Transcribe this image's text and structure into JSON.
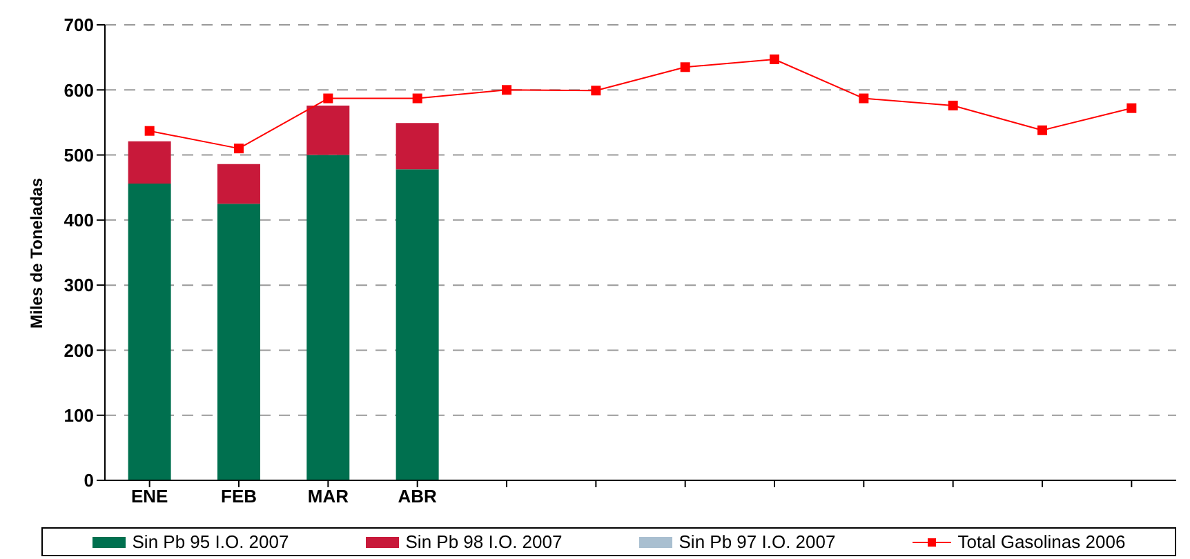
{
  "chart_data": {
    "type": "bar",
    "ylabel": "Miles de Toneladas",
    "categories": [
      "ENE",
      "FEB",
      "MAR",
      "ABR",
      null,
      null,
      null,
      null,
      null,
      null,
      null,
      null
    ],
    "stacked": true,
    "ylim": [
      0,
      700
    ],
    "yticks": [
      0,
      100,
      200,
      300,
      400,
      500,
      600,
      700
    ],
    "grid": "y",
    "legend": "bottom",
    "series": [
      {
        "name": "Sin Pb 95 I.O. 2007",
        "color": "#00704f",
        "values": [
          456,
          425,
          500,
          478,
          null,
          null,
          null,
          null,
          null,
          null,
          null,
          null
        ]
      },
      {
        "name": "Sin Pb 98 I.O. 2007",
        "color": "#c8193a",
        "values": [
          65,
          61,
          76,
          71,
          null,
          null,
          null,
          null,
          null,
          null,
          null,
          null
        ]
      },
      {
        "name": "Sin Pb 97 I.O. 2007",
        "color": "#a9bfd0",
        "values": [
          null,
          null,
          null,
          null,
          null,
          null,
          null,
          null,
          null,
          null,
          null,
          null
        ]
      },
      {
        "name": "Total Gasolinas 2006",
        "type": "line",
        "color": "#ff0000",
        "marker": "square",
        "values": [
          537,
          510,
          587,
          587,
          600,
          599,
          635,
          647,
          587,
          576,
          538,
          572
        ]
      }
    ]
  }
}
